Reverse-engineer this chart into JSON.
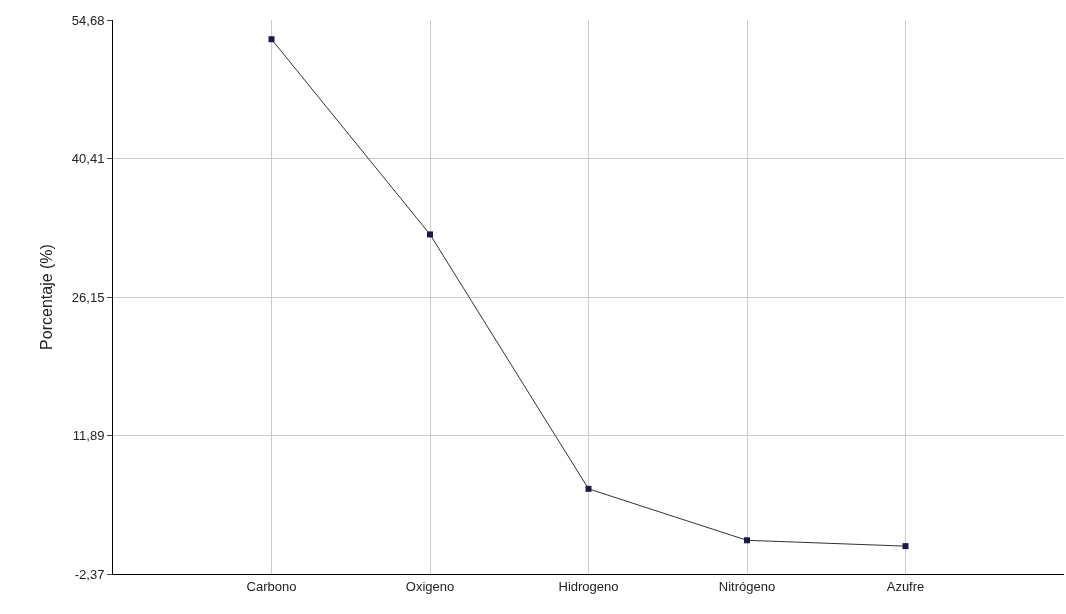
{
  "chart_data": {
    "type": "line",
    "ylabel": "Porcentaje (%)",
    "categories": [
      "Carbono",
      "Oxigeno",
      "Hidrogeno",
      "Nitrógeno",
      "Azufre"
    ],
    "series": [
      {
        "color": "#333333",
        "values": [
          52.7,
          32.6,
          6.4,
          1.1,
          0.5
        ]
      }
    ],
    "ylim": [
      -2.37,
      54.68
    ],
    "yticks": [
      {
        "value": -2.37,
        "label": "-2,37"
      },
      {
        "value": 11.89,
        "label": "11,89"
      },
      {
        "value": 26.15,
        "label": "26,15"
      },
      {
        "value": 40.41,
        "label": "40,41"
      },
      {
        "value": 54.68,
        "label": "54,68"
      }
    ],
    "grid": true,
    "marker": "square",
    "line_style": "solid"
  }
}
